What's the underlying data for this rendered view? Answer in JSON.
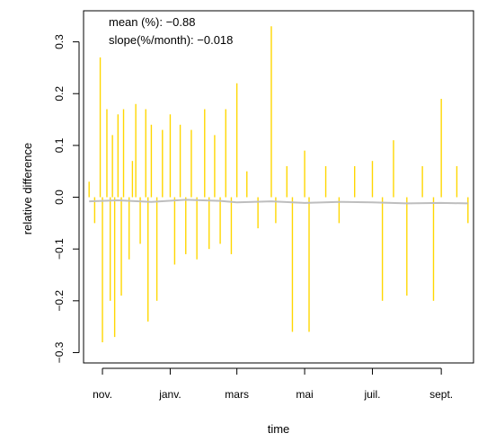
{
  "chart_data": {
    "type": "line",
    "xlabel": "time",
    "ylabel": "relative difference",
    "ylim": [
      -0.3,
      0.3
    ],
    "xlim": [
      "2015-10-15",
      "2016-09-30"
    ],
    "x_ticks": [
      "2015-11-01",
      "2016-01-01",
      "2016-03-01",
      "2016-05-01",
      "2016-07-01",
      "2016-09-01"
    ],
    "x_tick_labels": [
      "nov.",
      "janv.",
      "mars",
      "mai",
      "juil.",
      "sept."
    ],
    "y_ticks": [
      -0.3,
      -0.2,
      -0.1,
      0.0,
      0.1,
      0.2,
      0.3
    ],
    "y_tick_labels": [
      "−0.3",
      "−0.2",
      "−0.1",
      "0.0",
      "0.1",
      "0.2",
      "0.3"
    ],
    "annotations": [
      "mean (%): −0.88",
      "slope(%/month): −0.018"
    ],
    "colors": {
      "raw": "#FFD700",
      "smoothed": "#BEBEBE",
      "axis": "#000000"
    },
    "grid": false,
    "series": [
      {
        "x": [
          "2015-10-20",
          "2015-10-25",
          "2015-10-30",
          "2015-11-01",
          "2015-11-05",
          "2015-11-08",
          "2015-11-10",
          "2015-11-12",
          "2015-11-15",
          "2015-11-18",
          "2015-11-20",
          "2015-11-25",
          "2015-11-28",
          "2015-12-01",
          "2015-12-05",
          "2015-12-10",
          "2015-12-12",
          "2015-12-15",
          "2015-12-20",
          "2015-12-25",
          "2016-01-01",
          "2016-01-05",
          "2016-01-10",
          "2016-01-15",
          "2016-01-20",
          "2016-01-25",
          "2016-02-01",
          "2016-02-05",
          "2016-02-10",
          "2016-02-15",
          "2016-02-20",
          "2016-02-25",
          "2016-03-01",
          "2016-03-10",
          "2016-03-20",
          "2016-04-01",
          "2016-04-05",
          "2016-04-15",
          "2016-04-20",
          "2016-05-01",
          "2016-05-05",
          "2016-05-20",
          "2016-06-01",
          "2016-06-15",
          "2016-07-01",
          "2016-07-10",
          "2016-07-20",
          "2016-08-01",
          "2016-08-15",
          "2016-08-25",
          "2016-09-01",
          "2016-09-15",
          "2016-09-25"
        ],
        "values": [
          0.03,
          -0.05,
          0.27,
          -0.28,
          0.17,
          -0.2,
          0.12,
          -0.27,
          0.16,
          -0.19,
          0.17,
          -0.12,
          0.07,
          0.18,
          -0.09,
          0.17,
          -0.24,
          0.14,
          -0.2,
          0.13,
          0.16,
          -0.13,
          0.14,
          -0.11,
          0.13,
          -0.12,
          0.17,
          -0.1,
          0.12,
          -0.09,
          0.17,
          -0.11,
          0.22,
          0.05,
          -0.06,
          0.33,
          -0.05,
          0.06,
          -0.26,
          0.09,
          -0.26,
          0.06,
          -0.05,
          0.06,
          0.07,
          -0.2,
          0.11,
          -0.19,
          0.06,
          -0.2,
          0.19,
          0.06,
          -0.05
        ]
      },
      {
        "x": [
          "2015-10-20",
          "2015-11-15",
          "2015-12-15",
          "2016-01-15",
          "2016-02-15",
          "2016-03-01",
          "2016-04-01",
          "2016-05-01",
          "2016-06-01",
          "2016-07-01",
          "2016-08-01",
          "2016-09-01",
          "2016-09-25"
        ],
        "values": [
          -0.008,
          -0.006,
          -0.009,
          -0.005,
          -0.007,
          -0.01,
          -0.008,
          -0.011,
          -0.009,
          -0.01,
          -0.012,
          -0.011,
          -0.012
        ]
      }
    ]
  }
}
